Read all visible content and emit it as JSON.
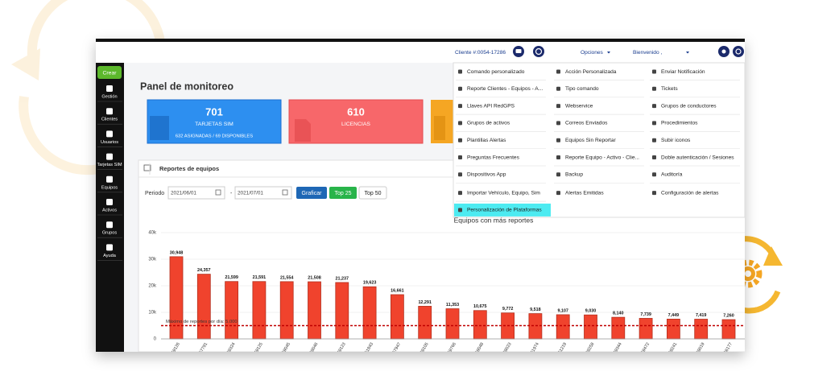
{
  "header": {
    "client": "Cliente #:0054-17286",
    "options": "Opciones",
    "welcome": "Bienvenido ,"
  },
  "sidebar": {
    "create": "Crear",
    "items": [
      "Gestión",
      "Clientes",
      "Usuarios",
      "Tarjetas SIM",
      "Equipos",
      "Activos",
      "Grupos",
      "Ayuda"
    ]
  },
  "page_title": "Panel de monitoreo",
  "cards": [
    {
      "value": 701,
      "label": "TARJETAS SIM",
      "detail": "632 ASIGNADAS / 69 DISPONIBLES"
    },
    {
      "value": 610,
      "label": "LICENCIAS"
    }
  ],
  "panel": {
    "title": "Reportes de equipos",
    "period_label": "Periodo",
    "from": "2021/06/01",
    "separator": "-",
    "to": "2021/07/01",
    "buttons": [
      "Graficar",
      "Top 25",
      "Top 50"
    ]
  },
  "menu": {
    "columns": [
      [
        "Comando personalizado",
        "Reporte Clientes - Equipos - A...",
        "Llaves API RedGPS",
        "Grupos de activos",
        "Plantillas Alertas",
        "Preguntas Frecuentes",
        "Dispositivos App",
        "Importar Vehículo, Equipo, Sim",
        "Personalización de Plataformas"
      ],
      [
        "Acción Personalizada",
        "Tipo comando",
        "Webservice",
        "Correos Enviados",
        "Equipos Sin Reportar",
        "Reporte Equipo - Activo - Clie...",
        "Backup",
        "Alertas Emitidas"
      ],
      [
        "Enviar Notificación",
        "Tickets",
        "Grupos de conductores",
        "Procedimientos",
        "Subir iconos",
        "Doble autenticación / Sesiones",
        "Auditoría",
        "Configuración de alertas"
      ]
    ]
  },
  "chart_data": {
    "type": "bar",
    "title": "Equipos con más reportes",
    "categories": [
      "59126",
      "57791",
      "59324",
      "59125",
      "59045",
      "59046",
      "59123",
      "51843",
      "57947",
      "59105",
      "59766",
      "59048",
      "59023",
      "51974",
      "51219",
      "59258",
      "59344",
      "59472",
      "59241",
      "59019",
      "56177"
    ],
    "values": [
      30948,
      24357,
      21599,
      21591,
      21554,
      21508,
      21237,
      19623,
      16661,
      12291,
      11353,
      10675,
      9772,
      9518,
      9107,
      9030,
      8140,
      7739,
      7449,
      7419,
      7260
    ],
    "value_labels": [
      "30,948",
      "24,357",
      "21,599",
      "21,591",
      "21,554",
      "21,508",
      "21,237",
      "19,623",
      "16,661",
      "12,291",
      "11,353",
      "10,675",
      "9,772",
      "9,518",
      "9,107",
      "9,030",
      "8,140",
      "7,739",
      "7,449",
      "7,419",
      "7,260"
    ],
    "color": "#f0432d",
    "ylim": [
      0,
      40000
    ],
    "yticks": [
      0,
      {
        "value": 10000,
        "label": "10k"
      },
      {
        "value": 20000,
        "label": "20k"
      },
      {
        "value": 30000,
        "label": "30k"
      },
      {
        "value": 40000,
        "label": "40k"
      }
    ],
    "threshold": {
      "value": 5000,
      "label": "Máximo de reportes por día: 5.000",
      "color": "#c00000"
    }
  }
}
